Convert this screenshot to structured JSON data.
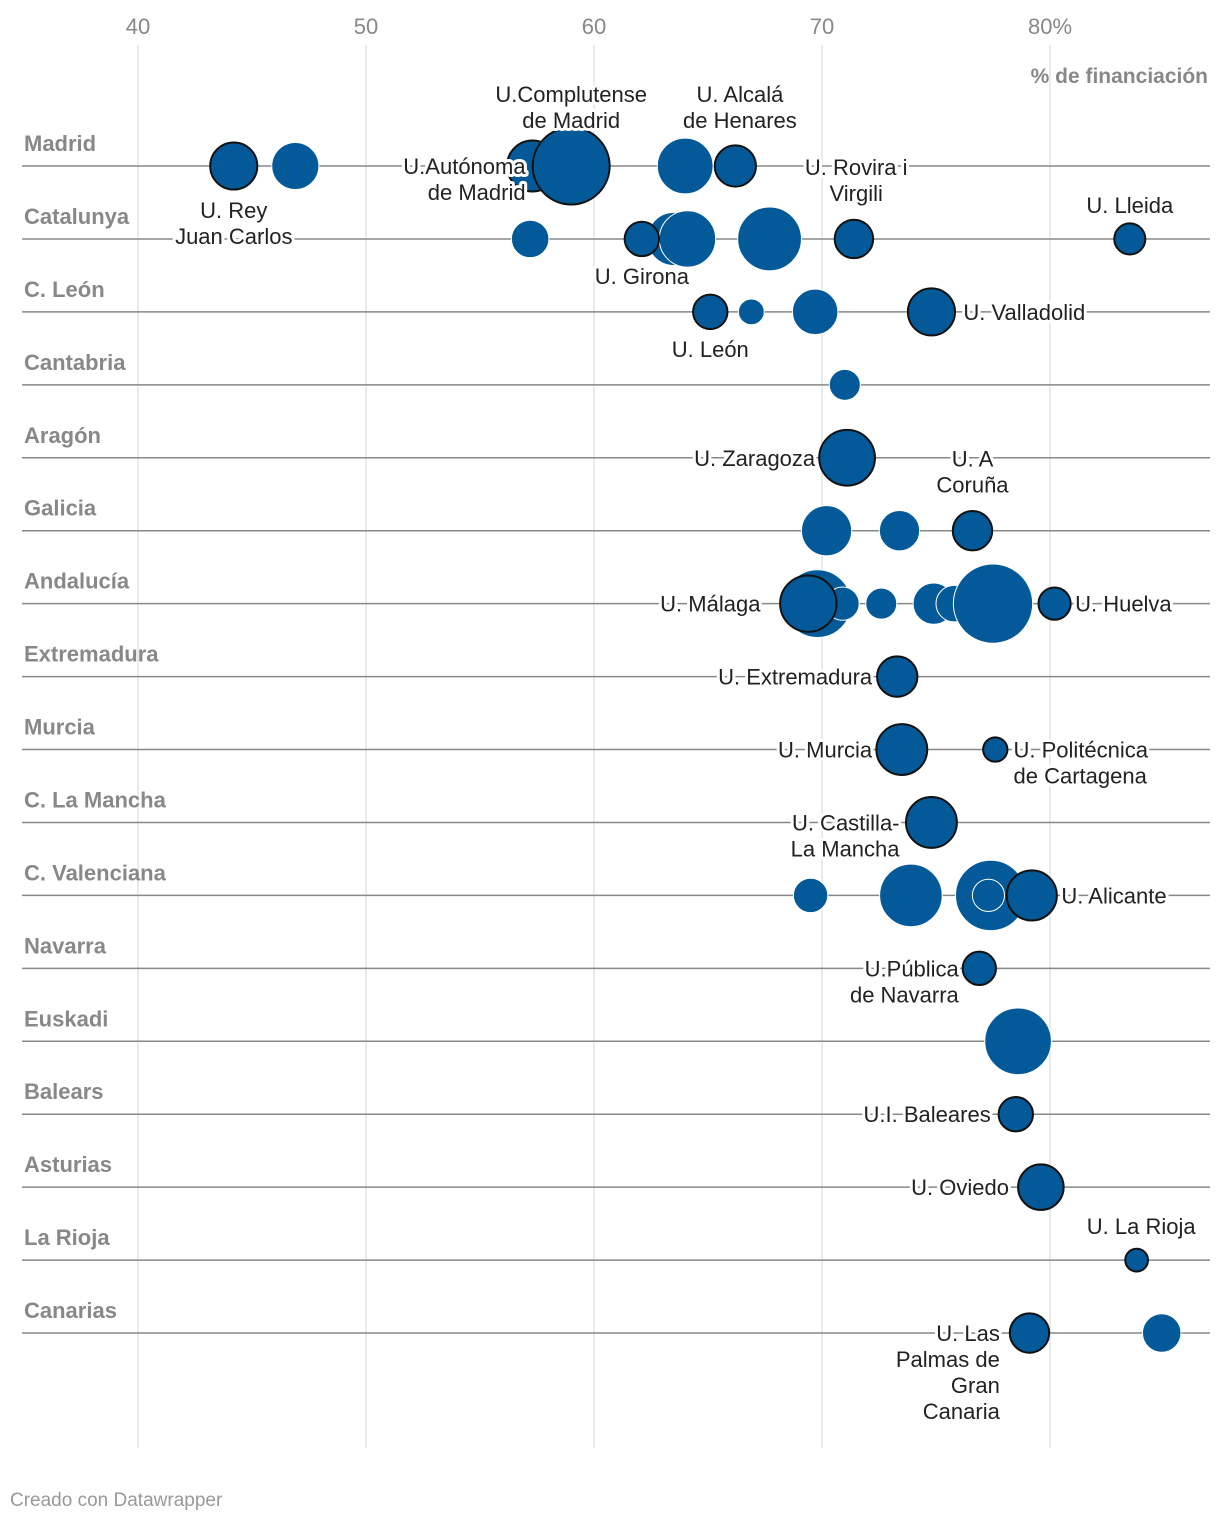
{
  "chart_data": {
    "type": "scatter",
    "title": "",
    "xlabel": "% de financiación",
    "ylabel": "",
    "xlim": [
      35,
      87
    ],
    "ticks": [
      {
        "value": 40,
        "label": "40"
      },
      {
        "value": 50,
        "label": "50"
      },
      {
        "value": 60,
        "label": "60"
      },
      {
        "value": 70,
        "label": "70"
      },
      {
        "value": 80,
        "label": "80%"
      }
    ],
    "colors": {
      "bubble": "#045a99",
      "outline": "#111111",
      "grid": "#e3e3e3",
      "rowline": "#888888"
    },
    "regions": [
      {
        "name": "Madrid",
        "points": [
          {
            "x": 44.2,
            "size": 3,
            "highlight": true
          },
          {
            "x": 46.9,
            "size": 3,
            "highlight": false
          },
          {
            "x": 57.3,
            "size": 3.5,
            "highlight": true
          },
          {
            "x": 59.0,
            "size": 8,
            "highlight": true
          },
          {
            "x": 64.0,
            "size": 4.2,
            "highlight": false
          },
          {
            "x": 66.2,
            "size": 2.3,
            "highlight": true
          }
        ]
      },
      {
        "name": "Catalunya",
        "points": [
          {
            "x": 57.2,
            "size": 1.9,
            "highlight": false
          },
          {
            "x": 62.1,
            "size": 1.6,
            "highlight": true
          },
          {
            "x": 63.5,
            "size": 3.8,
            "highlight": false
          },
          {
            "x": 64.1,
            "size": 4.3,
            "highlight": false
          },
          {
            "x": 67.7,
            "size": 5.5,
            "highlight": false
          },
          {
            "x": 71.4,
            "size": 2.0,
            "highlight": true
          },
          {
            "x": 83.5,
            "size": 1.3,
            "highlight": true
          }
        ]
      },
      {
        "name": "C. León",
        "points": [
          {
            "x": 65.1,
            "size": 1.6,
            "highlight": true
          },
          {
            "x": 66.9,
            "size": 0.9,
            "highlight": false
          },
          {
            "x": 69.7,
            "size": 2.8,
            "highlight": false
          },
          {
            "x": 74.8,
            "size": 3.0,
            "highlight": true
          }
        ]
      },
      {
        "name": "Cantabria",
        "points": [
          {
            "x": 71.0,
            "size": 1.3,
            "highlight": false
          }
        ]
      },
      {
        "name": "Aragón",
        "points": [
          {
            "x": 71.1,
            "size": 4.2,
            "highlight": true
          }
        ]
      },
      {
        "name": "Galicia",
        "points": [
          {
            "x": 70.2,
            "size": 3.4,
            "highlight": false
          },
          {
            "x": 73.4,
            "size": 2.2,
            "highlight": false
          },
          {
            "x": 76.6,
            "size": 2.1,
            "highlight": true
          }
        ]
      },
      {
        "name": "Andalucía",
        "points": [
          {
            "x": 69.8,
            "size": 6.2,
            "highlight": false
          },
          {
            "x": 70.9,
            "size": 1.5,
            "highlight": false
          },
          {
            "x": 72.6,
            "size": 1.3,
            "highlight": false
          },
          {
            "x": 74.9,
            "size": 2.3,
            "highlight": false
          },
          {
            "x": 75.8,
            "size": 1.8,
            "highlight": false
          },
          {
            "x": 77.5,
            "size": 8.5,
            "highlight": false
          },
          {
            "x": 69.4,
            "size": 4.3,
            "highlight": true
          },
          {
            "x": 69.8,
            "size": 1.3,
            "highlight": false
          },
          {
            "x": 80.2,
            "size": 1.4,
            "highlight": true
          }
        ]
      },
      {
        "name": "Extremadura",
        "points": [
          {
            "x": 73.3,
            "size": 2.2,
            "highlight": true
          }
        ]
      },
      {
        "name": "Murcia",
        "points": [
          {
            "x": 73.5,
            "size": 3.5,
            "highlight": true
          },
          {
            "x": 77.6,
            "size": 0.8,
            "highlight": true
          }
        ]
      },
      {
        "name": "C. La Mancha",
        "points": [
          {
            "x": 74.8,
            "size": 3.5,
            "highlight": true
          }
        ]
      },
      {
        "name": "C. Valenciana",
        "points": [
          {
            "x": 69.5,
            "size": 1.6,
            "highlight": false
          },
          {
            "x": 73.9,
            "size": 5.3,
            "highlight": false
          },
          {
            "x": 77.4,
            "size": 6.7,
            "highlight": false
          },
          {
            "x": 77.3,
            "size": 1.4,
            "highlight": false
          },
          {
            "x": 79.2,
            "size": 3.4,
            "highlight": true
          }
        ]
      },
      {
        "name": "Navarra",
        "points": [
          {
            "x": 76.9,
            "size": 1.5,
            "highlight": true
          }
        ]
      },
      {
        "name": "Euskadi",
        "points": [
          {
            "x": 78.6,
            "size": 6.0,
            "highlight": false
          }
        ]
      },
      {
        "name": "Balears",
        "points": [
          {
            "x": 78.5,
            "size": 1.6,
            "highlight": true
          }
        ]
      },
      {
        "name": "Asturias",
        "points": [
          {
            "x": 79.6,
            "size": 2.8,
            "highlight": true
          }
        ]
      },
      {
        "name": "La Rioja",
        "points": [
          {
            "x": 83.8,
            "size": 0.7,
            "highlight": true
          }
        ]
      },
      {
        "name": "Canarias",
        "points": [
          {
            "x": 79.1,
            "size": 2.1,
            "highlight": true
          },
          {
            "x": 84.9,
            "size": 2.0,
            "highlight": false
          }
        ]
      }
    ],
    "annotations": [
      {
        "row": 0,
        "x": 59.0,
        "anchor": "middle",
        "pos": "above",
        "lines": [
          "U.Complutense",
          "de Madrid"
        ]
      },
      {
        "row": 0,
        "x": 66.4,
        "anchor": "middle",
        "pos": "above",
        "lines": [
          "U. Alcalá",
          "de Henares"
        ]
      },
      {
        "row": 0,
        "x": 57.0,
        "anchor": "end",
        "pos": "mid",
        "lines": [
          "U.Autónoma",
          "de Madrid"
        ]
      },
      {
        "row": 0,
        "x": 44.2,
        "anchor": "middle",
        "pos": "below",
        "lines": [
          "U. Rey",
          "Juan Carlos"
        ]
      },
      {
        "row": 1,
        "x": 71.5,
        "anchor": "middle",
        "pos": "above",
        "lines": [
          "U. Rovira i",
          "Virgili"
        ]
      },
      {
        "row": 1,
        "x": 83.5,
        "anchor": "middle",
        "pos": "above",
        "lines": [
          "U. Lleida"
        ]
      },
      {
        "row": 1,
        "x": 62.1,
        "anchor": "middle",
        "pos": "below",
        "lines": [
          "U. Girona"
        ]
      },
      {
        "row": 2,
        "x": 76.2,
        "anchor": "start",
        "pos": "mid",
        "lines": [
          "U. Valladolid"
        ]
      },
      {
        "row": 2,
        "x": 65.1,
        "anchor": "middle",
        "pos": "below",
        "lines": [
          "U. León"
        ]
      },
      {
        "row": 4,
        "x": 69.7,
        "anchor": "end",
        "pos": "mid",
        "lines": [
          "U. Zaragoza"
        ]
      },
      {
        "row": 5,
        "x": 76.6,
        "anchor": "middle",
        "pos": "above",
        "lines": [
          "U. A",
          "Coruña"
        ]
      },
      {
        "row": 6,
        "x": 67.3,
        "anchor": "end",
        "pos": "mid",
        "lines": [
          "U. Málaga"
        ]
      },
      {
        "row": 6,
        "x": 81.1,
        "anchor": "start",
        "pos": "mid",
        "lines": [
          "U. Huelva"
        ]
      },
      {
        "row": 7,
        "x": 72.2,
        "anchor": "end",
        "pos": "mid",
        "lines": [
          "U. Extremadura"
        ]
      },
      {
        "row": 8,
        "x": 72.2,
        "anchor": "end",
        "pos": "mid",
        "lines": [
          "U. Murcia"
        ]
      },
      {
        "row": 8,
        "x": 78.4,
        "anchor": "start",
        "pos": "mid2",
        "lines": [
          "U. Politécnica",
          "de Cartagena"
        ]
      },
      {
        "row": 9,
        "x": 73.4,
        "anchor": "end",
        "pos": "mid2",
        "lines": [
          "U. Castilla-",
          "La Mancha"
        ]
      },
      {
        "row": 10,
        "x": 80.5,
        "anchor": "start",
        "pos": "mid",
        "lines": [
          "U. Alicante"
        ]
      },
      {
        "row": 11,
        "x": 76.0,
        "anchor": "end",
        "pos": "mid2",
        "lines": [
          "U.Pública",
          "de Navarra"
        ]
      },
      {
        "row": 13,
        "x": 77.4,
        "anchor": "end",
        "pos": "mid",
        "lines": [
          "U.I. Baleares"
        ]
      },
      {
        "row": 14,
        "x": 78.2,
        "anchor": "end",
        "pos": "mid",
        "lines": [
          "U. Oviedo"
        ]
      },
      {
        "row": 15,
        "x": 84.0,
        "anchor": "middle",
        "pos": "above",
        "lines": [
          "U. La Rioja"
        ]
      },
      {
        "row": 16,
        "x": 77.8,
        "anchor": "end",
        "pos": "mid4",
        "lines": [
          "U. Las",
          "Palmas de",
          "Gran",
          "Canaria"
        ]
      }
    ]
  },
  "footer": {
    "credit": "Creado con Datawrapper"
  }
}
